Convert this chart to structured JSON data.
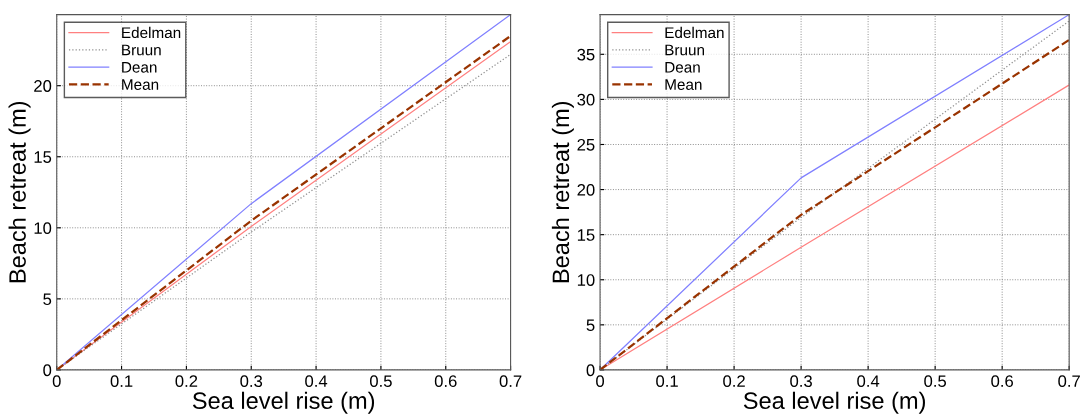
{
  "chart_data": [
    {
      "type": "line",
      "xlabel": "Sea level rise (m)",
      "ylabel": "Beach retreat (m)",
      "x": [
        0,
        0.3,
        0.7
      ],
      "xlim": [
        0,
        0.7
      ],
      "xticks": [
        0,
        0.1,
        0.2,
        0.3,
        0.4,
        0.5,
        0.6,
        0.7
      ],
      "ylim": [
        0,
        25
      ],
      "yticks": [
        0,
        5,
        10,
        15,
        20
      ],
      "grid": true,
      "legend": "top left",
      "series": [
        {
          "name": "Edelman",
          "color": "#ff8080",
          "line_style": "solid",
          "values": [
            0,
            10.1,
            23.1
          ]
        },
        {
          "name": "Bruun",
          "color": "#909090",
          "line_style": "dotted",
          "values": [
            0,
            9.7,
            22.2
          ]
        },
        {
          "name": "Dean",
          "color": "#8080ff",
          "line_style": "solid",
          "values": [
            0,
            11.7,
            25
          ]
        },
        {
          "name": "Mean",
          "color": "#993300",
          "line_style": "dashed",
          "values": [
            0,
            10.5,
            23.5
          ]
        }
      ]
    },
    {
      "type": "line",
      "xlabel": "Sea level rise (m)",
      "ylabel": "Beach retreat (m)",
      "x": [
        0,
        0.3,
        0.7
      ],
      "xlim": [
        0,
        0.7
      ],
      "xticks": [
        0,
        0.1,
        0.2,
        0.3,
        0.4,
        0.5,
        0.6,
        0.7
      ],
      "ylim": [
        0,
        39.4
      ],
      "yticks": [
        0,
        5,
        10,
        15,
        20,
        25,
        30,
        35
      ],
      "grid": true,
      "legend": "top left",
      "series": [
        {
          "name": "Edelman",
          "color": "#ff8080",
          "line_style": "solid",
          "values": [
            0,
            13.6,
            31.6
          ]
        },
        {
          "name": "Bruun",
          "color": "#909090",
          "line_style": "dotted",
          "values": [
            0,
            16.9,
            38.7
          ]
        },
        {
          "name": "Dean",
          "color": "#8080ff",
          "line_style": "solid",
          "values": [
            0,
            21.3,
            39.4
          ]
        },
        {
          "name": "Mean",
          "color": "#993300",
          "line_style": "dashed",
          "values": [
            0,
            17.2,
            36.6
          ]
        }
      ]
    }
  ]
}
